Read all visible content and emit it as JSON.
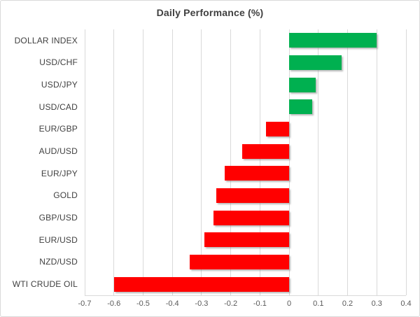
{
  "chart_data": {
    "type": "bar",
    "orientation": "horizontal",
    "title": "Daily Performance (%)",
    "categories": [
      "DOLLAR INDEX",
      "USD/CHF",
      "USD/JPY",
      "USD/CAD",
      "EUR/GBP",
      "AUD/USD",
      "EUR/JPY",
      "GOLD",
      "GBP/USD",
      "EUR/USD",
      "NZD/USD",
      "WTI CRUDE OIL"
    ],
    "values": [
      0.3,
      0.18,
      0.09,
      0.08,
      -0.08,
      -0.16,
      -0.22,
      -0.25,
      -0.26,
      -0.29,
      -0.34,
      -0.6
    ],
    "x_ticks": [
      -0.7,
      -0.6,
      -0.5,
      -0.4,
      -0.3,
      -0.2,
      -0.1,
      0,
      0.1,
      0.2,
      0.3,
      0.4
    ],
    "xlim": [
      -0.7,
      0.4
    ],
    "xlabel": "",
    "ylabel": "",
    "grid": true,
    "legend": "none",
    "colors": {
      "positive": "#00B050",
      "negative": "#FF0000",
      "gridline": "#D9D9D9",
      "title_text": "#3F3F3F",
      "category_text": "#404040",
      "tick_text": "#595959",
      "background": "#FFFFFF",
      "border": "#D9D9D9"
    }
  }
}
